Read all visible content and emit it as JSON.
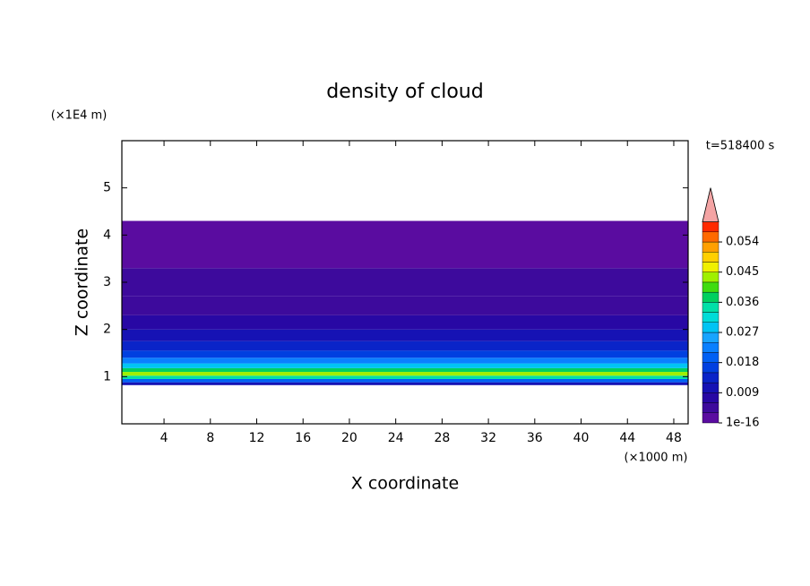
{
  "chart_data": {
    "type": "contour",
    "title": "density of cloud",
    "x_label": "X coordinate",
    "y_label": "Z coordinate",
    "x_unit": "(×1000 m)",
    "y_unit": "(×1E4 m)",
    "time_label": "t=518400 s",
    "xlim": [
      0.36,
      49.24
    ],
    "ylim": [
      0,
      6
    ],
    "xticks": [
      4,
      8,
      12,
      16,
      20,
      24,
      28,
      32,
      36,
      40,
      44,
      48
    ],
    "yticks": [
      1,
      2,
      3,
      4,
      5
    ],
    "z_bins": [
      0.82,
      0.88,
      0.95,
      1.02,
      1.1,
      1.18,
      1.28,
      1.4,
      1.55,
      1.75,
      2.0,
      2.3,
      2.7,
      3.3,
      4.3
    ],
    "values": [
      0.009,
      0.018,
      0.033,
      0.042,
      0.036,
      0.027,
      0.021,
      0.015,
      0.012,
      0.009,
      0.007,
      0.005,
      0.003,
      0.001
    ],
    "colorbar": {
      "levels": [
        1e-16,
        0.003,
        0.006,
        0.009,
        0.012,
        0.015,
        0.018,
        0.021,
        0.024,
        0.027,
        0.03,
        0.033,
        0.036,
        0.039,
        0.042,
        0.045,
        0.048,
        0.051,
        0.054,
        0.057,
        0.06
      ],
      "colors": [
        "#5a0ca0",
        "#3d0a9c",
        "#2808a4",
        "#1612b4",
        "#0a24c8",
        "#0040e0",
        "#0060f4",
        "#0a80ff",
        "#18a4ff",
        "#00c4f4",
        "#00dcd8",
        "#00e0a8",
        "#00d060",
        "#40dc10",
        "#a0f000",
        "#f0f000",
        "#ffd000",
        "#ffa000",
        "#ff6a00",
        "#ff2a00"
      ],
      "over_color": "#f4a4a4",
      "ticks": [
        1e-16,
        0.009,
        0.018,
        0.027,
        0.036,
        0.045,
        0.054
      ]
    }
  }
}
